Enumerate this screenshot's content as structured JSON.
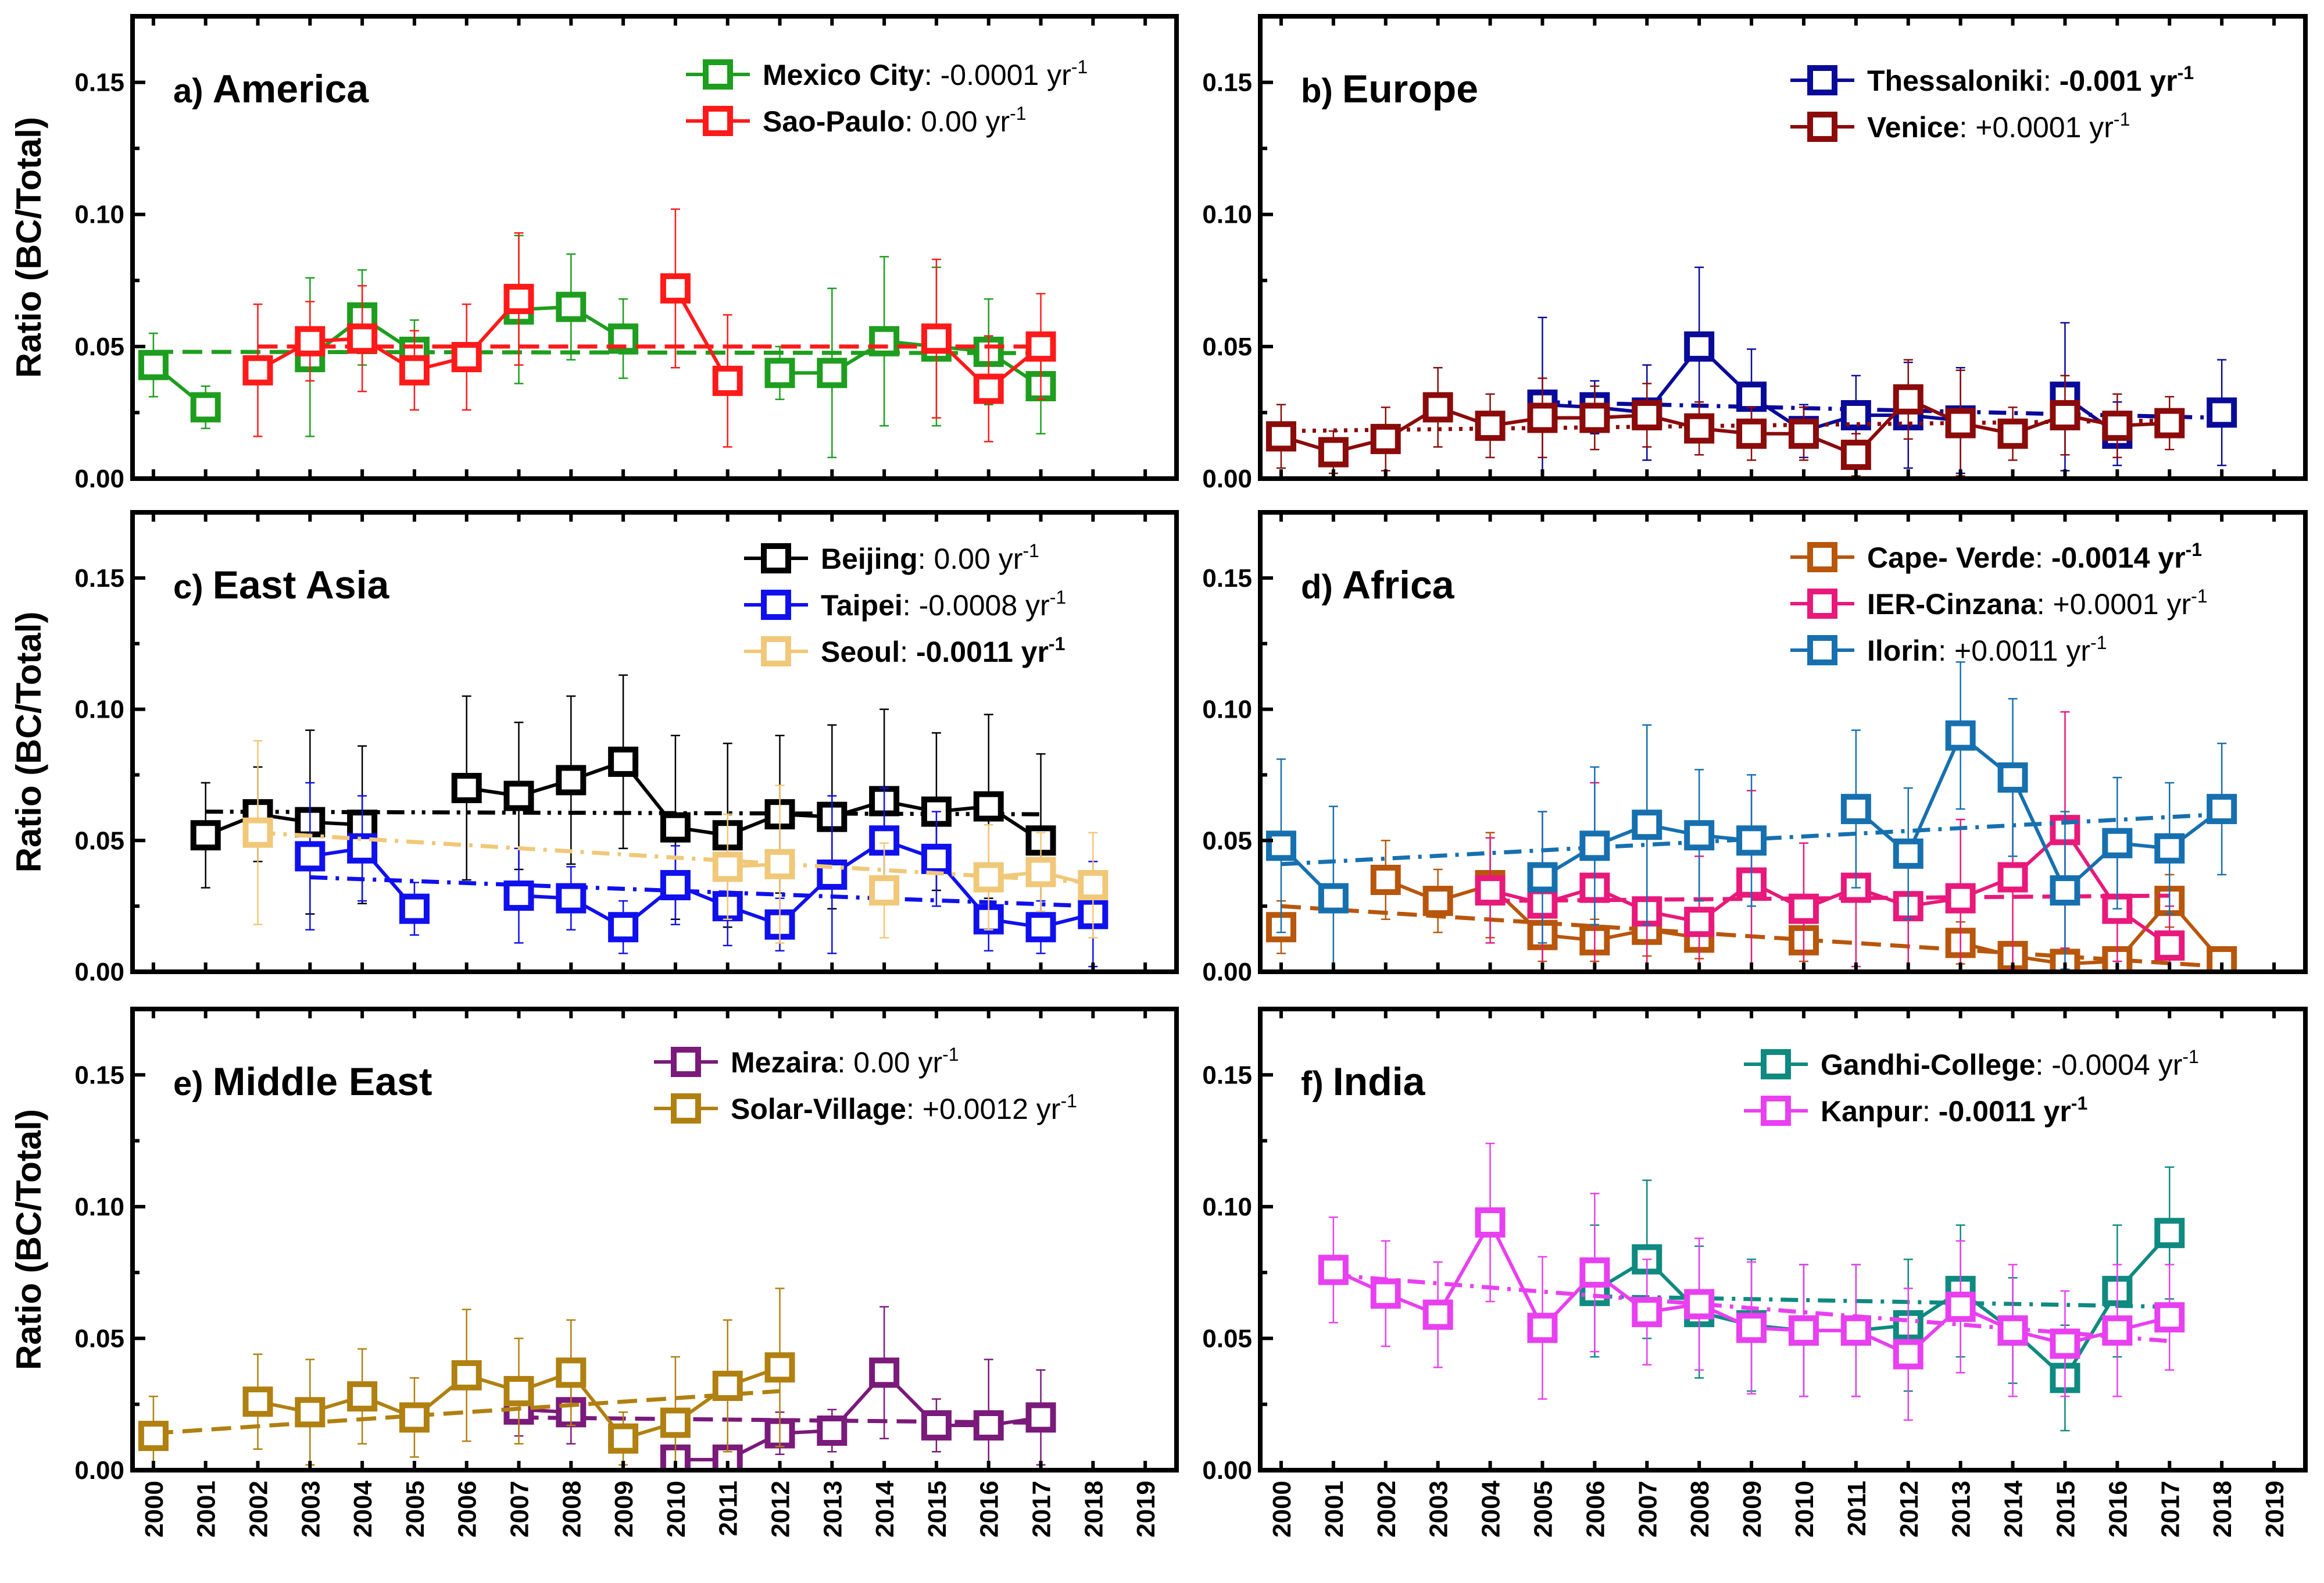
{
  "x_tick_labels": [
    "2000",
    "2001",
    "2002",
    "2003",
    "2004",
    "2005",
    "2006",
    "2007",
    "2008",
    "2009",
    "2010",
    "2011",
    "2012",
    "2013",
    "2014",
    "2015",
    "2016",
    "2017",
    "2018",
    "2019"
  ],
  "chart_data": [
    {
      "type": "line",
      "letter": "a",
      "title": "America",
      "ylabel": "Ratio (BC/Total)",
      "ylim": [
        0,
        0.175
      ],
      "yticks": [
        "0.00",
        "0.05",
        "0.10",
        "0.15"
      ],
      "xlim": [
        1999.6,
        2019.6
      ],
      "series": [
        {
          "name": "Mexico City",
          "rate": "-0.0001",
          "rate_bold": false,
          "unit": "yr",
          "sup": "-1",
          "color": "#1e9e1e",
          "trend_style": "dashed",
          "x": [
            2000,
            2001,
            2003,
            2004,
            2005,
            2007,
            2008,
            2009,
            2012,
            2013,
            2014,
            2015,
            2016,
            2017
          ],
          "y": [
            0.043,
            0.027,
            0.046,
            0.061,
            0.048,
            0.064,
            0.065,
            0.053,
            0.04,
            0.04,
            0.052,
            0.05,
            0.048,
            0.035
          ],
          "err": [
            0.012,
            0.008,
            0.03,
            0.018,
            0.012,
            0.028,
            0.02,
            0.015,
            0.01,
            0.032,
            0.032,
            0.03,
            0.02,
            0.018
          ],
          "trend": [
            0.048,
            0.0475
          ]
        },
        {
          "name": "Sao-Paulo",
          "rate": "0.00",
          "rate_bold": false,
          "unit": "yr",
          "sup": "-1",
          "color": "#ff1a1a",
          "trend_style": "dashed",
          "x": [
            2002,
            2003,
            2004,
            2005,
            2006,
            2007,
            2010,
            2011,
            2015,
            2016,
            2017
          ],
          "y": [
            0.041,
            0.052,
            0.053,
            0.041,
            0.046,
            0.068,
            0.072,
            0.037,
            0.053,
            0.034,
            0.05
          ],
          "err": [
            0.025,
            0.015,
            0.02,
            0.015,
            0.02,
            0.025,
            0.03,
            0.025,
            0.03,
            0.02,
            0.02
          ],
          "trend": [
            0.05,
            0.05
          ]
        }
      ]
    },
    {
      "type": "line",
      "letter": "b",
      "title": "Europe",
      "ylabel": "",
      "ylim": [
        0,
        0.175
      ],
      "yticks": [
        "0.00",
        "0.05",
        "0.10",
        "0.15"
      ],
      "xlim": [
        1999.6,
        2019.6
      ],
      "series": [
        {
          "name": "Thessaloniki",
          "rate": "-0.001",
          "rate_bold": true,
          "unit": "yr",
          "sup": "-1",
          "color": "#0a0a99",
          "trend_style": "dashdot",
          "x": [
            2005,
            2006,
            2007,
            2008,
            2009,
            2010,
            2011,
            2012,
            2013,
            2015,
            2016,
            2018
          ],
          "y": [
            0.028,
            0.027,
            0.025,
            0.05,
            0.031,
            0.018,
            0.024,
            0.024,
            0.022,
            0.031,
            0.017,
            0.025
          ],
          "err": [
            0.033,
            0.01,
            0.018,
            0.03,
            0.018,
            0.01,
            0.015,
            0.02,
            0.02,
            0.028,
            0.012,
            0.02
          ],
          "trend": [
            0.029,
            0.023
          ]
        },
        {
          "name": "Venice",
          "rate": "+0.0001",
          "rate_bold": false,
          "unit": "yr",
          "sup": "-1",
          "color": "#8b0a0a",
          "trend_style": "dotted",
          "x": [
            2000,
            2001,
            2002,
            2003,
            2004,
            2005,
            2006,
            2007,
            2008,
            2009,
            2010,
            2011,
            2012,
            2013,
            2014,
            2015,
            2016,
            2017
          ],
          "y": [
            0.016,
            0.01,
            0.015,
            0.027,
            0.02,
            0.023,
            0.023,
            0.024,
            0.019,
            0.017,
            0.017,
            0.009,
            0.03,
            0.021,
            0.017,
            0.024,
            0.02,
            0.021
          ],
          "err": [
            0.012,
            0.008,
            0.012,
            0.015,
            0.012,
            0.015,
            0.012,
            0.012,
            0.01,
            0.01,
            0.01,
            0.008,
            0.015,
            0.02,
            0.01,
            0.015,
            0.012,
            0.01
          ],
          "trend": [
            0.018,
            0.022
          ]
        }
      ]
    },
    {
      "type": "line",
      "letter": "c",
      "title": "East Asia",
      "ylabel": "Ratio (BC/Total)",
      "ylim": [
        0,
        0.175
      ],
      "yticks": [
        "0.00",
        "0.05",
        "0.10",
        "0.15"
      ],
      "xlim": [
        1999.6,
        2019.6
      ],
      "series": [
        {
          "name": "Beijing",
          "rate": "0.00",
          "rate_bold": false,
          "unit": "yr",
          "sup": "-1",
          "color": "#000000",
          "trend_style": "dashdotdot",
          "x": [
            2001,
            2002,
            2003,
            2004,
            2006,
            2007,
            2008,
            2009,
            2010,
            2011,
            2012,
            2013,
            2014,
            2015,
            2016,
            2017
          ],
          "y": [
            0.052,
            0.06,
            0.057,
            0.056,
            0.07,
            0.067,
            0.073,
            0.08,
            0.055,
            0.052,
            0.06,
            0.059,
            0.065,
            0.061,
            0.063,
            0.05
          ],
          "err": [
            0.02,
            0.018,
            0.035,
            0.03,
            0.035,
            0.028,
            0.032,
            0.033,
            0.035,
            0.035,
            0.03,
            0.035,
            0.035,
            0.03,
            0.035,
            0.033
          ],
          "trend": [
            0.061,
            0.06
          ]
        },
        {
          "name": "Taipei",
          "rate": "-0.0008",
          "rate_bold": false,
          "unit": "yr",
          "sup": "-1",
          "color": "#1010ee",
          "trend_style": "dashdot",
          "x": [
            2003,
            2004,
            2005,
            2007,
            2008,
            2009,
            2010,
            2011,
            2012,
            2013,
            2014,
            2015,
            2016,
            2017,
            2018
          ],
          "y": [
            0.044,
            0.047,
            0.024,
            0.029,
            0.028,
            0.017,
            0.033,
            0.025,
            0.018,
            0.037,
            0.05,
            0.043,
            0.02,
            0.017,
            0.022
          ],
          "err": [
            0.028,
            0.02,
            0.01,
            0.018,
            0.012,
            0.01,
            0.015,
            0.015,
            0.01,
            0.03,
            0.02,
            0.018,
            0.012,
            0.01,
            0.02
          ],
          "trend": [
            0.036,
            0.025
          ]
        },
        {
          "name": "Seoul",
          "rate": "-0.0011",
          "rate_bold": true,
          "unit": "yr",
          "sup": "-1",
          "color": "#f0c878",
          "trend_style": "dashdot",
          "x": [
            2002,
            2011,
            2012,
            2014,
            2016,
            2017,
            2018
          ],
          "y": [
            0.053,
            0.04,
            0.041,
            0.031,
            0.036,
            0.038,
            0.033
          ],
          "err": [
            0.035,
            0.02,
            0.03,
            0.018,
            0.02,
            0.015,
            0.02
          ],
          "trend": [
            0.053,
            0.034
          ]
        }
      ]
    },
    {
      "type": "line",
      "letter": "d",
      "title": "Africa",
      "ylabel": "",
      "ylim": [
        0,
        0.175
      ],
      "yticks": [
        "0.00",
        "0.05",
        "0.10",
        "0.15"
      ],
      "xlim": [
        1999.6,
        2019.6
      ],
      "series": [
        {
          "name": "Cape- Verde",
          "rate": "-0.0014",
          "rate_bold": true,
          "unit": "yr",
          "sup": "-1",
          "color": "#b8560c",
          "trend_style": "dashed",
          "x": [
            2000,
            2002,
            2003,
            2004,
            2005,
            2006,
            2007,
            2008,
            2010,
            2013,
            2014,
            2015,
            2016,
            2017,
            2018
          ],
          "y": [
            0.017,
            0.035,
            0.027,
            0.033,
            0.014,
            0.012,
            0.016,
            0.013,
            0.012,
            0.011,
            0.006,
            0.003,
            0.004,
            0.027,
            0.004
          ],
          "err": [
            0.01,
            0.015,
            0.012,
            0.02,
            0.01,
            0.008,
            0.01,
            0.008,
            0.008,
            0.008,
            0.005,
            0.004,
            0.004,
            0.01,
            0.004
          ],
          "trend": [
            0.025,
            0.002
          ]
        },
        {
          "name": "IER-Cinzana",
          "rate": "+0.0001",
          "rate_bold": false,
          "unit": "yr",
          "sup": "-1",
          "color": "#e8197a",
          "trend_style": "dashed",
          "x": [
            2004,
            2005,
            2006,
            2007,
            2008,
            2009,
            2010,
            2011,
            2012,
            2013,
            2014,
            2015,
            2016,
            2017
          ],
          "y": [
            0.031,
            0.026,
            0.032,
            0.023,
            0.019,
            0.034,
            0.024,
            0.032,
            0.025,
            0.028,
            0.036,
            0.054,
            0.024,
            0.01
          ],
          "err": [
            0.02,
            0.035,
            0.04,
            0.03,
            0.025,
            0.035,
            0.025,
            0.03,
            0.025,
            0.03,
            0.035,
            0.045,
            0.02,
            0.015
          ],
          "trend": [
            0.027,
            0.029
          ]
        },
        {
          "name": "Ilorin",
          "rate": "+0.0011",
          "rate_bold": false,
          "unit": "yr",
          "sup": "-1",
          "color": "#1670b0",
          "trend_style": "dashdot",
          "x": [
            2000,
            2001,
            2005,
            2006,
            2007,
            2008,
            2009,
            2011,
            2012,
            2013,
            2014,
            2015,
            2016,
            2017,
            2018
          ],
          "y": [
            0.048,
            0.028,
            0.036,
            0.048,
            0.056,
            0.052,
            0.05,
            0.062,
            0.045,
            0.09,
            0.074,
            0.031,
            0.049,
            0.047,
            0.062
          ],
          "err": [
            0.033,
            0.035,
            0.025,
            0.03,
            0.038,
            0.025,
            0.025,
            0.03,
            0.025,
            0.028,
            0.03,
            0.03,
            0.025,
            0.025,
            0.025
          ],
          "trend": [
            0.041,
            0.06
          ]
        }
      ]
    },
    {
      "type": "line",
      "letter": "e",
      "title": "Middle East",
      "ylabel": "Ratio (BC/Total)",
      "ylim": [
        0,
        0.175
      ],
      "yticks": [
        "0.00",
        "0.05",
        "0.10",
        "0.15"
      ],
      "xlim": [
        1999.6,
        2019.6
      ],
      "series": [
        {
          "name": "Mezaira",
          "rate": "0.00",
          "rate_bold": false,
          "unit": "yr",
          "sup": "-1",
          "color": "#7a1a7a",
          "trend_style": "dashed",
          "x": [
            2007,
            2008,
            2010,
            2011,
            2012,
            2013,
            2014,
            2015,
            2016,
            2017
          ],
          "y": [
            0.023,
            0.022,
            0.004,
            0.004,
            0.014,
            0.015,
            0.037,
            0.017,
            0.017,
            0.02
          ],
          "err": [
            0.01,
            0.012,
            0.005,
            0.005,
            0.008,
            0.008,
            0.025,
            0.01,
            0.025,
            0.018
          ],
          "trend": [
            0.02,
            0.018
          ]
        },
        {
          "name": "Solar-Village",
          "rate": "+0.0012",
          "rate_bold": false,
          "unit": "yr",
          "sup": "-1",
          "color": "#b08010",
          "trend_style": "dashed",
          "x": [
            2000,
            2002,
            2003,
            2004,
            2005,
            2006,
            2007,
            2008,
            2009,
            2010,
            2011,
            2012
          ],
          "y": [
            0.013,
            0.026,
            0.022,
            0.028,
            0.02,
            0.036,
            0.03,
            0.037,
            0.012,
            0.018,
            0.032,
            0.039
          ],
          "err": [
            0.015,
            0.018,
            0.02,
            0.018,
            0.015,
            0.025,
            0.02,
            0.02,
            0.01,
            0.025,
            0.025,
            0.03
          ],
          "trend": [
            0.014,
            0.03
          ]
        }
      ]
    },
    {
      "type": "line",
      "letter": "f",
      "title": "India",
      "ylabel": "",
      "ylim": [
        0,
        0.175
      ],
      "yticks": [
        "0.00",
        "0.05",
        "0.10",
        "0.15"
      ],
      "xlim": [
        1999.6,
        2019.6
      ],
      "series": [
        {
          "name": "Gandhi-College",
          "rate": "-0.0004",
          "rate_bold": false,
          "unit": "yr",
          "sup": "-1",
          "color": "#0e8a80",
          "trend_style": "dashdot",
          "x": [
            2006,
            2007,
            2008,
            2009,
            2010,
            2011,
            2012,
            2013,
            2014,
            2015,
            2016,
            2017
          ],
          "y": [
            0.068,
            0.08,
            0.06,
            0.055,
            0.053,
            0.053,
            0.055,
            0.068,
            0.053,
            0.035,
            0.068,
            0.09
          ],
          "err": [
            0.025,
            0.03,
            0.025,
            0.025,
            0.025,
            0.025,
            0.025,
            0.025,
            0.02,
            0.02,
            0.025,
            0.025
          ],
          "trend": [
            0.066,
            0.062
          ]
        },
        {
          "name": "Kanpur",
          "rate": "-0.0011",
          "rate_bold": true,
          "unit": "yr",
          "sup": "-1",
          "color": "#e840f0",
          "trend_style": "dashdot",
          "x": [
            2001,
            2002,
            2003,
            2004,
            2005,
            2006,
            2007,
            2008,
            2009,
            2010,
            2011,
            2012,
            2013,
            2014,
            2015,
            2016,
            2017
          ],
          "y": [
            0.076,
            0.067,
            0.059,
            0.094,
            0.054,
            0.075,
            0.06,
            0.063,
            0.054,
            0.053,
            0.053,
            0.044,
            0.062,
            0.053,
            0.048,
            0.053,
            0.058
          ],
          "err": [
            0.02,
            0.02,
            0.02,
            0.03,
            0.027,
            0.03,
            0.02,
            0.025,
            0.025,
            0.025,
            0.025,
            0.025,
            0.025,
            0.025,
            0.02,
            0.025,
            0.02
          ],
          "trend": [
            0.074,
            0.049
          ]
        }
      ]
    }
  ]
}
